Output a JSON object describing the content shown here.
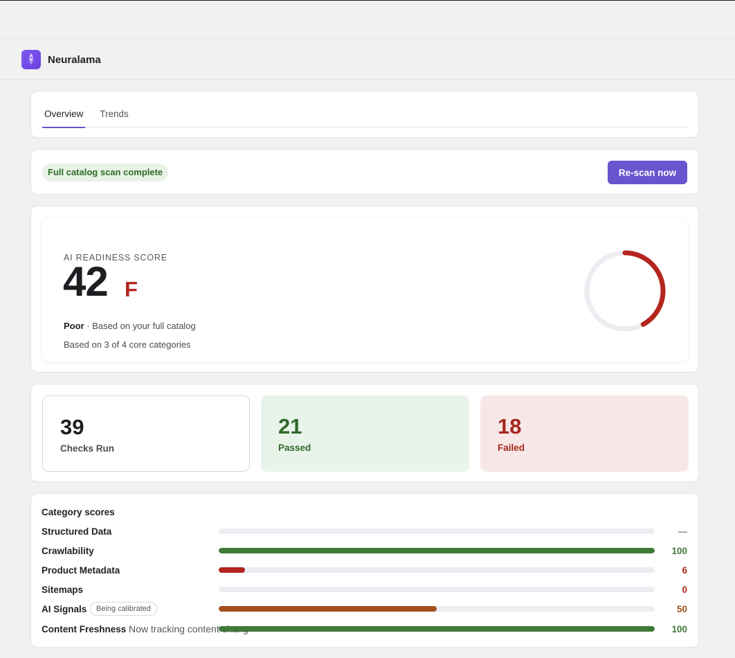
{
  "app": {
    "name": "Neuralama",
    "logo_icon": "rocket-icon"
  },
  "tabs": [
    {
      "label": "Overview",
      "active": true
    },
    {
      "label": "Trends",
      "active": false
    }
  ],
  "status": {
    "text": "Full catalog scan complete",
    "button": "Re-scan now"
  },
  "score": {
    "label": "AI READINESS SCORE",
    "value": "42",
    "grade": "F",
    "rating": "Poor",
    "rating_note": " · Based on your full catalog",
    "basis": "Based on 3 of 4 core categories",
    "fraction": 0.42,
    "color": "#b3261e"
  },
  "stats": {
    "run": {
      "value": "39",
      "label": "Checks Run"
    },
    "passed": {
      "value": "21",
      "label": "Passed"
    },
    "failed": {
      "value": "18",
      "label": "Failed"
    }
  },
  "categories": {
    "title": "Category scores",
    "rows": [
      {
        "name": "Structured Data",
        "score": "—",
        "fraction": 0,
        "color": "#8a8a8a"
      },
      {
        "name": "Crawlability",
        "score": "100",
        "fraction": 1.0,
        "color": "#3f7a38"
      },
      {
        "name": "Product Metadata",
        "score": "6",
        "fraction": 0.06,
        "color": "#b3261e"
      },
      {
        "name": "Sitemaps",
        "score": "0",
        "fraction": 0,
        "color": "#b3261e"
      },
      {
        "name": "AI Signals",
        "badge": "Being calibrated",
        "score": "50",
        "fraction": 0.5,
        "color": "#a24f1c"
      },
      {
        "name": "Content Freshness",
        "note": "Now tracking content chang",
        "score": "100",
        "fraction": 1.0,
        "color": "#3f7a38"
      }
    ]
  }
}
